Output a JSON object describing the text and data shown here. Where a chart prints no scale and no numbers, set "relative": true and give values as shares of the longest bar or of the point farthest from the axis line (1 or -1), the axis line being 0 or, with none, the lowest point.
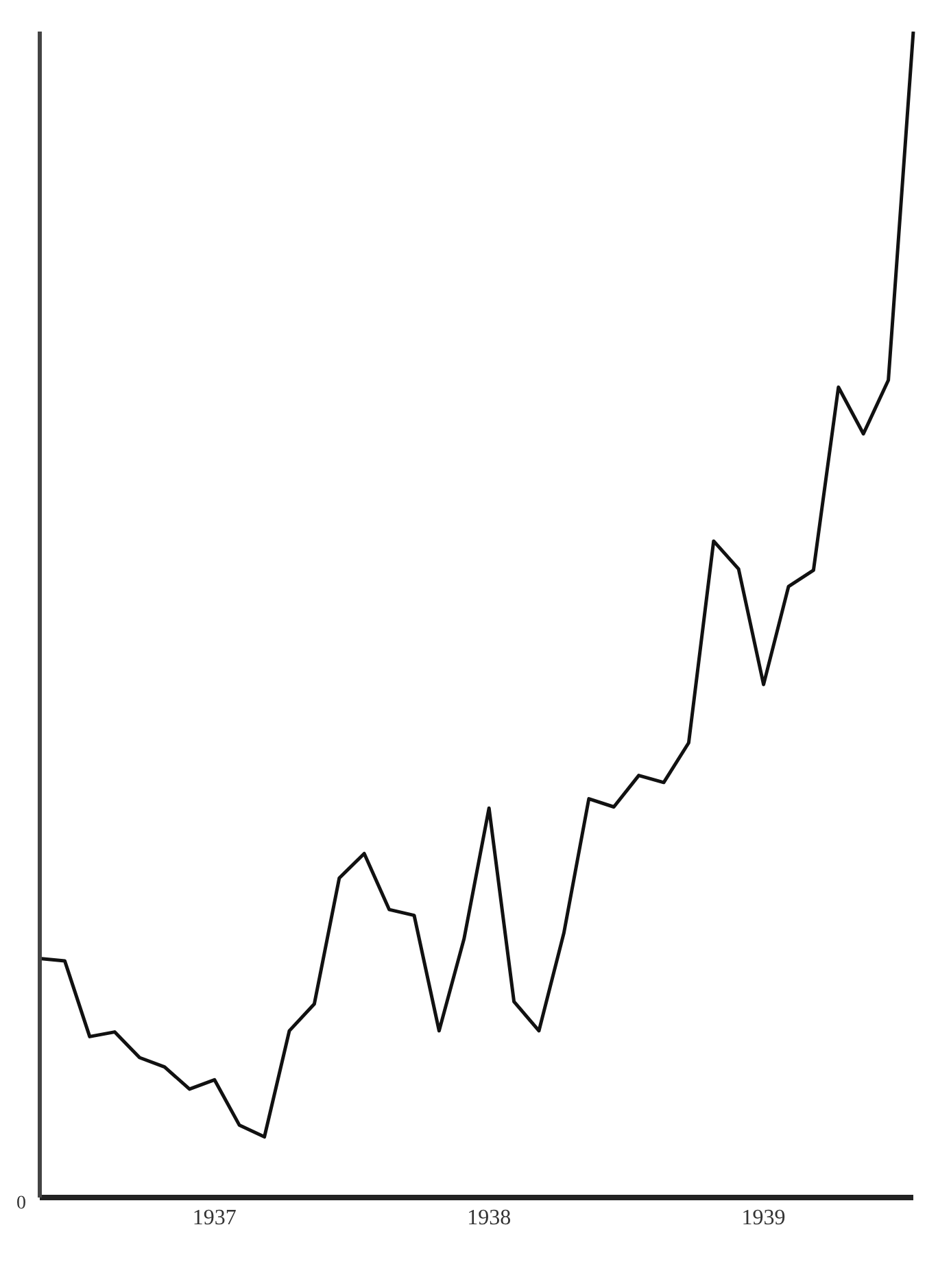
{
  "chart_data": {
    "type": "line",
    "relative": true,
    "categories": [
      null,
      null,
      null,
      null,
      null,
      null,
      null,
      "1937",
      null,
      null,
      null,
      null,
      null,
      null,
      null,
      null,
      null,
      null,
      "1938",
      null,
      null,
      null,
      null,
      null,
      null,
      null,
      null,
      null,
      null,
      "1939",
      null,
      null,
      null,
      null,
      null,
      null
    ],
    "series": [
      {
        "color": "#111111",
        "values": [
          0.205,
          0.203,
          0.138,
          0.142,
          0.12,
          0.112,
          0.093,
          0.101,
          0.062,
          0.052,
          0.143,
          0.166,
          0.274,
          0.295,
          0.247,
          0.242,
          0.143,
          0.222,
          0.334,
          0.168,
          0.143,
          0.227,
          0.342,
          0.335,
          0.362,
          0.356,
          0.39,
          0.563,
          0.539,
          0.44,
          0.524,
          0.538,
          0.695,
          0.655,
          0.701,
          1
        ]
      }
    ],
    "marker": "none",
    "line_style": "solid",
    "annotations": [
      "0"
    ]
  }
}
